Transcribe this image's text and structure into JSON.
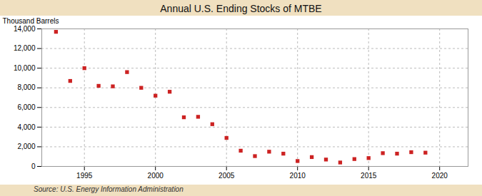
{
  "chart_data": {
    "type": "scatter",
    "title": "Annual U.S. Ending Stocks of MTBE",
    "ylabel": "Thousand Barrels",
    "caption": "Source: U.S. Energy Information Administration",
    "x": [
      1993,
      1994,
      1995,
      1996,
      1997,
      1998,
      1999,
      2000,
      2001,
      2002,
      2003,
      2004,
      2005,
      2006,
      2007,
      2008,
      2009,
      2010,
      2011,
      2012,
      2013,
      2014,
      2015,
      2016,
      2017,
      2018,
      2019
    ],
    "values": [
      13700,
      8700,
      10000,
      8200,
      8150,
      9600,
      8000,
      7200,
      7600,
      5000,
      5050,
      4300,
      2900,
      1600,
      1050,
      1500,
      1300,
      550,
      950,
      700,
      400,
      750,
      850,
      1350,
      1300,
      1450,
      1400
    ],
    "color": "#cc2222",
    "marker": "square",
    "xlim": [
      1992,
      2022
    ],
    "xticks": [
      1995,
      2000,
      2005,
      2010,
      2015,
      2020
    ],
    "ylim": [
      0,
      14000
    ],
    "yticks": [
      0,
      {
        "value": 2000,
        "label": "2,000"
      },
      {
        "value": 4000,
        "label": "4,000"
      },
      {
        "value": 6000,
        "label": "6,000"
      },
      {
        "value": 8000,
        "label": "8,000"
      },
      {
        "value": 10000,
        "label": "10,000"
      },
      {
        "value": 12000,
        "label": "12,000"
      },
      {
        "value": 14000,
        "label": "14,000"
      }
    ],
    "grid": true
  }
}
